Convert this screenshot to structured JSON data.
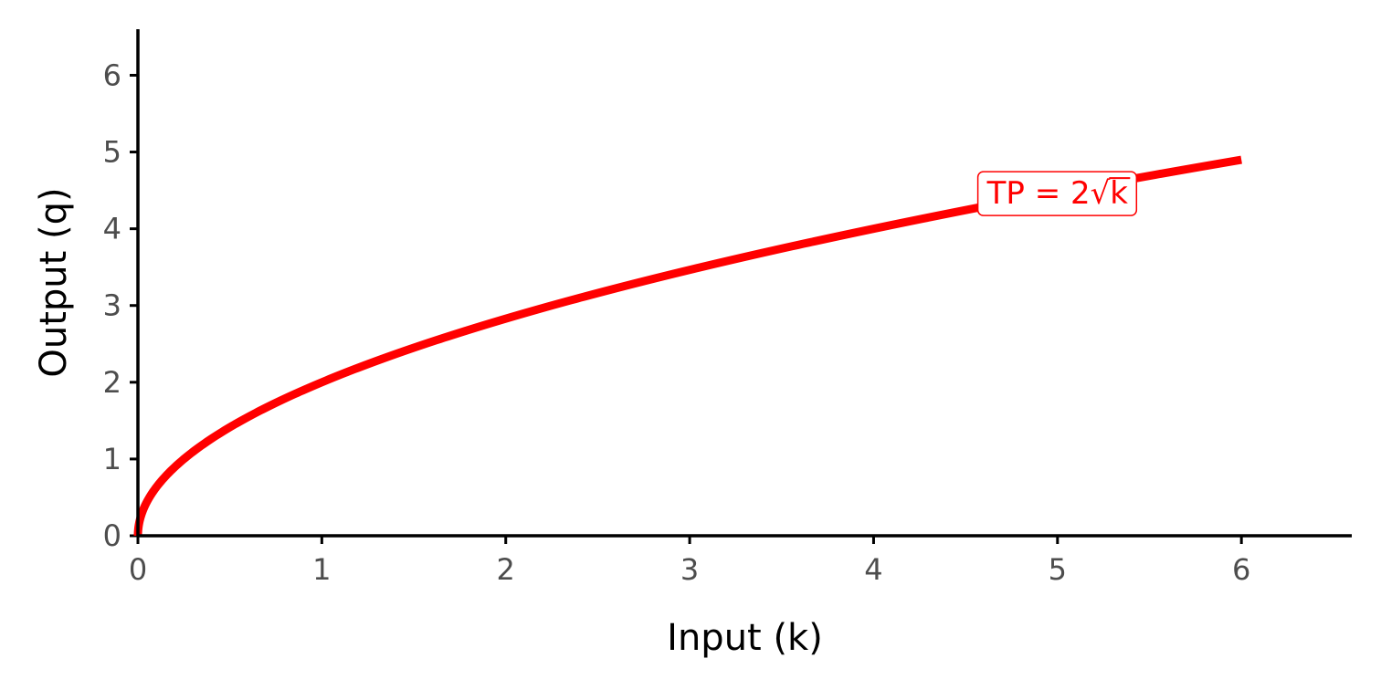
{
  "chart_data": {
    "type": "line",
    "title": "",
    "xlabel": "Input (k)",
    "ylabel": "Output (q)",
    "xlim": [
      0,
      6.6
    ],
    "ylim": [
      0,
      6.6
    ],
    "x_ticks": [
      "0",
      "1",
      "2",
      "3",
      "4",
      "5",
      "6"
    ],
    "y_ticks": [
      "0",
      "1",
      "2",
      "3",
      "4",
      "5",
      "6"
    ],
    "grid": false,
    "series": [
      {
        "function": "q = 2*sqrt(k)",
        "color": "#ff0000",
        "x": [
          0,
          0.25,
          0.5,
          1,
          1.5,
          2,
          2.5,
          3,
          3.5,
          4,
          4.5,
          5,
          5.5,
          6
        ],
        "y": [
          0,
          1.0,
          1.41,
          2.0,
          2.45,
          2.83,
          3.16,
          3.46,
          3.74,
          4.0,
          4.24,
          4.47,
          4.69,
          4.9
        ]
      }
    ],
    "annotation": {
      "text_prefix": "TP = 2",
      "radical": "√",
      "radicand": "k",
      "x": 5,
      "y": 4.47,
      "color": "#ff0000"
    }
  }
}
